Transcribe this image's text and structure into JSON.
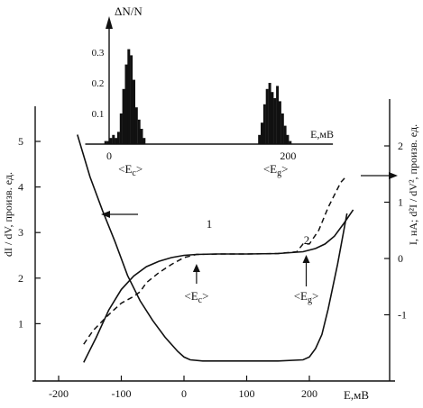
{
  "chart_data": [
    {
      "id": "main",
      "type": "line",
      "xlabel": "E,мВ",
      "ylabel_left": "dI / dV, произв. ед.",
      "ylabel_right": "I, нА; d²I / dV², произв. ед.",
      "xlim": [
        -240,
        270
      ],
      "ylim_left": [
        0,
        5.7
      ],
      "ylim_right": [
        -2.0,
        2.6
      ],
      "x_ticks": [
        -200,
        -100,
        0,
        100,
        200
      ],
      "x_tick_labels": [
        "-200",
        "-100",
        "0",
        "100",
        "200"
      ],
      "y_left_ticks": [
        1,
        2,
        3,
        4,
        5
      ],
      "y_left_tick_labels": [
        "1",
        "2",
        "3",
        "4",
        "5"
      ],
      "y_right_ticks": [
        -1,
        0,
        1,
        2
      ],
      "y_right_tick_labels": [
        "-1",
        "0",
        "1",
        "2"
      ],
      "series": [
        {
          "name": "1",
          "style": "solid",
          "axis": "left",
          "x": [
            -160,
            -140,
            -120,
            -100,
            -80,
            -60,
            -40,
            -20,
            0,
            20,
            50,
            100,
            150,
            190,
            210,
            225,
            240,
            255,
            270
          ],
          "y": [
            0.15,
            0.7,
            1.3,
            1.75,
            2.05,
            2.25,
            2.37,
            2.45,
            2.5,
            2.52,
            2.53,
            2.53,
            2.54,
            2.58,
            2.65,
            2.75,
            2.92,
            3.2,
            3.5
          ]
        },
        {
          "name": "2",
          "style": "dashed",
          "axis": "left",
          "x": [
            -160,
            -145,
            -120,
            -100,
            -80,
            -70,
            -60,
            -40,
            -20,
            0,
            20,
            60,
            100,
            150,
            180,
            190,
            200,
            215,
            230,
            250,
            260
          ],
          "y": [
            0.55,
            0.85,
            1.2,
            1.45,
            1.6,
            1.7,
            1.9,
            2.12,
            2.3,
            2.45,
            2.52,
            2.53,
            2.53,
            2.54,
            2.58,
            2.75,
            2.75,
            3.05,
            3.55,
            4.1,
            4.25
          ]
        },
        {
          "name": "I",
          "style": "solid",
          "axis": "right",
          "x": [
            -170,
            -150,
            -130,
            -110,
            -90,
            -70,
            -50,
            -30,
            -10,
            0,
            10,
            30,
            60,
            100,
            150,
            190,
            200,
            210,
            220,
            230,
            245,
            260
          ],
          "y": [
            2.2,
            1.45,
            0.85,
            0.3,
            -0.3,
            -0.75,
            -1.1,
            -1.4,
            -1.65,
            -1.75,
            -1.8,
            -1.82,
            -1.82,
            -1.82,
            -1.82,
            -1.8,
            -1.75,
            -1.6,
            -1.35,
            -0.9,
            -0.1,
            0.8
          ]
        }
      ],
      "annotations": [
        {
          "text": "1",
          "near": "curve 1 at left end of plateau"
        },
        {
          "text": "2",
          "near": "dashed curve 2 near 190 мВ"
        },
        {
          "text": "<E",
          "sub": "c",
          "suffix": ">",
          "x": 20
        },
        {
          "text": "<E",
          "sub": "g",
          "suffix": ">",
          "x": 195
        }
      ]
    },
    {
      "id": "inset",
      "type": "bar",
      "title": "ΔN/N",
      "xlabel": "E,мВ",
      "xlim": [
        -30,
        270
      ],
      "ylim": [
        0,
        0.4
      ],
      "x_ticks": [
        0,
        200
      ],
      "x_tick_labels": [
        "0",
        "200"
      ],
      "y_ticks": [
        0.1,
        0.2,
        0.3
      ],
      "y_tick_labels": [
        "0.1",
        "0.2",
        "0.3"
      ],
      "bin_width": 2.5,
      "bins_center": [
        -4,
        -1,
        2,
        5,
        8,
        11,
        14,
        17,
        20,
        23,
        26,
        29,
        32,
        35,
        38,
        41
      ],
      "bins_center_values": [
        0.01,
        0.01,
        0.02,
        0.03,
        0.02,
        0.04,
        0.1,
        0.18,
        0.26,
        0.31,
        0.29,
        0.21,
        0.12,
        0.08,
        0.05,
        0.02
      ],
      "bins_right": [
        176,
        179,
        182,
        185,
        188,
        191,
        194,
        197,
        200,
        203,
        206,
        209,
        212
      ],
      "bins_right_values": [
        0.03,
        0.07,
        0.13,
        0.18,
        0.2,
        0.17,
        0.15,
        0.19,
        0.14,
        0.1,
        0.06,
        0.03,
        0.01
      ],
      "labels": [
        {
          "text": "<E",
          "sub": "c",
          "suffix": ">",
          "x": 25
        },
        {
          "text": "<E",
          "sub": "g",
          "suffix": ">",
          "x": 195
        }
      ]
    }
  ]
}
